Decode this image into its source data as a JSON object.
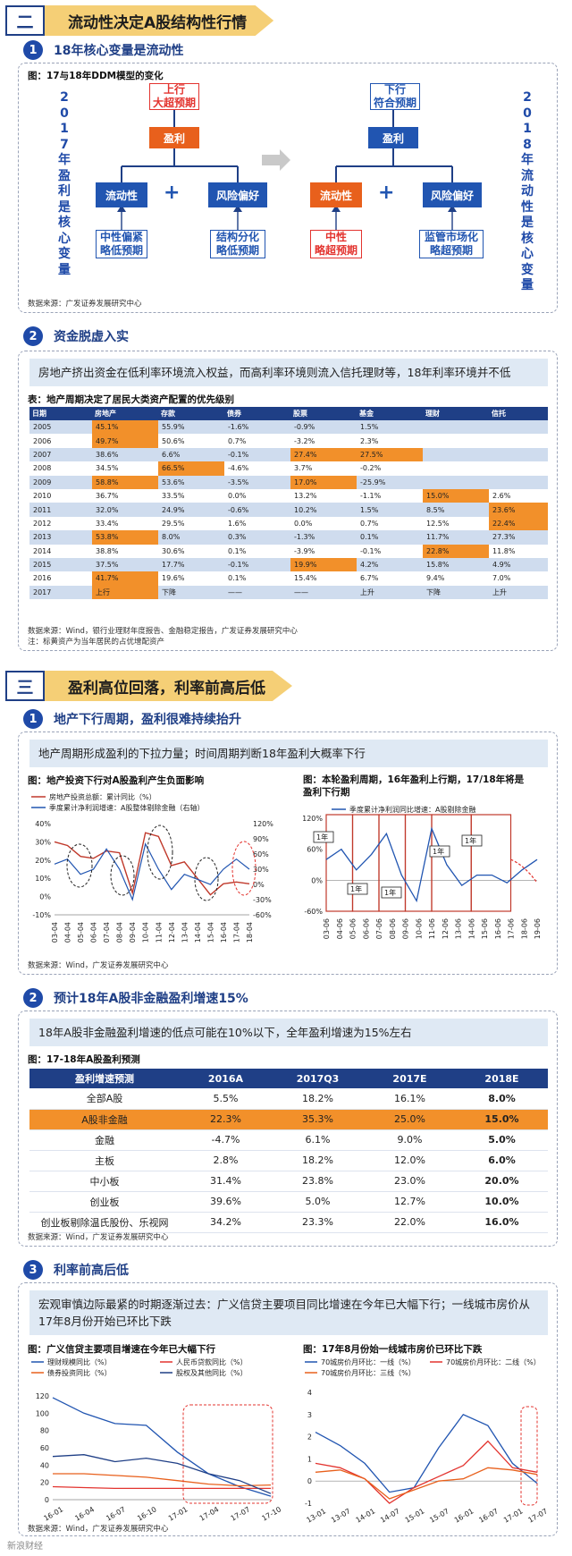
{
  "section2": {
    "num": "二",
    "label": "流动性决定A股结构性行情"
  },
  "sub1": {
    "num": "1",
    "label": "18年核心变量是流动性"
  },
  "ddm": {
    "fig_title": "图：17与18年DDM模型的变化",
    "left_vertical": "2017年盈利是核心变量",
    "right_vertical": "2018年流动性是核心变量",
    "left_top_1": "上行",
    "left_top_2": "大超预期",
    "right_top_1": "下行",
    "right_top_2": "符合预期",
    "profit": "盈利",
    "liquidity": "流动性",
    "risk": "风险偏好",
    "plus": "+",
    "l_liq_1": "中性偏紧",
    "l_liq_2": "略低预期",
    "l_risk_1": "结构分化",
    "l_risk_2": "略低预期",
    "r_liq_1": "中性",
    "r_liq_2": "略超预期",
    "r_risk_1": "监管市场化",
    "r_risk_2": "略超预期",
    "source": "数据来源：广发证券发展研究中心"
  },
  "sub2": {
    "num": "2",
    "label": "资金脱虚入实"
  },
  "alloc": {
    "highlight": "房地产挤出资金在低利率环境流入权益，而高利率环境则流入信托理财等，18年利率环境并不低",
    "fig_title": "表：地产周期决定了居民大类资产配置的优先级别",
    "headers": [
      "日期",
      "房地产",
      "存款",
      "债券",
      "股票",
      "基金",
      "理财",
      "信托"
    ],
    "rows": [
      {
        "cells": [
          "2005",
          "45.1%",
          "55.9%",
          "-1.6%",
          "-0.9%",
          "1.5%",
          "",
          ""
        ],
        "hl": [
          1
        ]
      },
      {
        "cells": [
          "2006",
          "49.7%",
          "50.6%",
          "0.7%",
          "-3.2%",
          "2.3%",
          "",
          ""
        ],
        "hl": [
          1
        ]
      },
      {
        "cells": [
          "2007",
          "38.6%",
          "6.6%",
          "-0.1%",
          "27.4%",
          "27.5%",
          "",
          ""
        ],
        "hl": [
          4,
          5
        ]
      },
      {
        "cells": [
          "2008",
          "34.5%",
          "66.5%",
          "-4.6%",
          "3.7%",
          "-0.2%",
          "",
          ""
        ],
        "hl": [
          2
        ]
      },
      {
        "cells": [
          "2009",
          "58.8%",
          "53.6%",
          "-3.5%",
          "17.0%",
          "-25.9%",
          "",
          ""
        ],
        "hl": [
          1,
          4
        ]
      },
      {
        "cells": [
          "2010",
          "36.7%",
          "33.5%",
          "0.0%",
          "13.2%",
          "-1.1%",
          "15.0%",
          "2.6%"
        ],
        "hl": [
          6
        ]
      },
      {
        "cells": [
          "2011",
          "32.0%",
          "24.9%",
          "-0.6%",
          "10.2%",
          "1.5%",
          "8.5%",
          "23.6%"
        ],
        "hl": [
          7
        ]
      },
      {
        "cells": [
          "2012",
          "33.4%",
          "29.5%",
          "1.6%",
          "0.0%",
          "0.7%",
          "12.5%",
          "22.4%"
        ],
        "hl": [
          7
        ]
      },
      {
        "cells": [
          "2013",
          "53.8%",
          "8.0%",
          "0.3%",
          "-1.3%",
          "0.1%",
          "11.7%",
          "27.3%"
        ],
        "hl": [
          1
        ]
      },
      {
        "cells": [
          "2014",
          "38.8%",
          "30.6%",
          "0.1%",
          "-3.9%",
          "-0.1%",
          "22.8%",
          "11.8%"
        ],
        "hl": [
          6
        ]
      },
      {
        "cells": [
          "2015",
          "37.5%",
          "17.7%",
          "-0.1%",
          "19.9%",
          "4.2%",
          "15.8%",
          "4.9%"
        ],
        "hl": [
          4
        ]
      },
      {
        "cells": [
          "2016",
          "41.7%",
          "19.6%",
          "0.1%",
          "15.4%",
          "6.7%",
          "9.4%",
          "7.0%"
        ],
        "hl": [
          1
        ]
      },
      {
        "cells": [
          "2017",
          "上行",
          "下降",
          "——",
          "——",
          "上升",
          "下降",
          "上升"
        ],
        "hl": [
          1
        ]
      }
    ],
    "source": "数据来源：Wind，银行业理财年度报告、金融稳定报告，广发证券发展研究中心",
    "note": "注：标黄资产为当年居民的占优增配资产"
  },
  "section3": {
    "num": "三",
    "label": "盈利高位回落，利率前高后低"
  },
  "sub3": {
    "num": "1",
    "label": "地产下行周期，盈利很难持续抬升"
  },
  "earn": {
    "highlight": "地产周期形成盈利的下拉力量；时间周期判断18年盈利大概率下行",
    "left_title": "图：地产投资下行对A股盈利产生负面影响",
    "left_legend_1": "房地产投资总额：累计同比（%）",
    "left_legend_2": "季度累计净利润增速：A股整体剔除金融（右轴）",
    "right_title_1": "图：本轮盈利周期，16年盈利上行期，17/18年将是",
    "right_title_2": "盈利下行期",
    "right_legend": "季度累计净利润同比增速：A股剔除金融",
    "year_label": "1年",
    "source": "数据来源：Wind，广发证券发展研究中心"
  },
  "sub4": {
    "num": "2",
    "label": "预计18年A股非金融盈利增速15%"
  },
  "pred": {
    "highlight": "18年A股非金融盈利增速的低点可能在10%以下，全年盈利增速为15%左右",
    "fig_title": "图：17-18年A股盈利预测",
    "headers": [
      "盈利增速预测",
      "2016A",
      "2017Q3",
      "2017E",
      "2018E"
    ],
    "rows": [
      [
        "全部A股",
        "5.5%",
        "18.2%",
        "16.1%",
        "8.0%"
      ],
      [
        "A股非金融",
        "22.3%",
        "35.3%",
        "25.0%",
        "15.0%"
      ],
      [
        "金融",
        "-4.7%",
        "6.1%",
        "9.0%",
        "5.0%"
      ],
      [
        "主板",
        "2.8%",
        "18.2%",
        "12.0%",
        "6.0%"
      ],
      [
        "中小板",
        "31.4%",
        "23.8%",
        "23.0%",
        "20.0%"
      ],
      [
        "创业板",
        "39.6%",
        "5.0%",
        "12.7%",
        "10.0%"
      ],
      [
        "创业板剔除温氏股份、乐视网",
        "34.2%",
        "23.3%",
        "22.0%",
        "16.0%"
      ]
    ],
    "source": "数据来源：Wind，广发证券发展研究中心"
  },
  "sub5": {
    "num": "3",
    "label": "利率前高后低"
  },
  "rate": {
    "highlight": "宏观审慎边际最紧的时期逐渐过去：广义信贷主要项目同比增速在今年已大幅下行；一线城市房价从17年8月份开始已环比下跌",
    "left_title": "图：广义信贷主要项目增速在今年已大幅下行",
    "left_legend": [
      "理财规模同比（%）",
      "人民币贷款同比（%）",
      "债券投资同比（%）",
      "股权及其他同比（%）"
    ],
    "right_title": "图：17年8月份始一线城市房价已环比下跌",
    "right_legend": [
      "70城房价月环比：一线（%）",
      "70城房价月环比：二线（%）",
      "70城房价月环比：三线（%）"
    ],
    "source": "数据来源：Wind，广发证券发展研究中心"
  },
  "watermark": "新浪财经",
  "colors": {
    "navy": "#1f3f86",
    "blue": "#2155b1",
    "orange": "#f2902a",
    "red": "#e3342f",
    "banner": "#f5cf76"
  },
  "chart_data": [
    {
      "type": "line",
      "title": "图：地产投资下行对A股盈利产生负面影响",
      "x": [
        "03-04",
        "04-04",
        "05-04",
        "06-04",
        "07-04",
        "08-04",
        "09-04",
        "10-04",
        "11-04",
        "12-04",
        "13-04",
        "14-04",
        "15-04",
        "16-04",
        "17-04",
        "18-04"
      ],
      "ylim": [
        -10,
        40
      ],
      "y2lim": [
        -60,
        120
      ],
      "series": [
        {
          "name": "房地产投资总额：累计同比（%）",
          "axis": "left",
          "values": [
            30,
            28,
            22,
            21,
            25,
            24,
            2,
            35,
            33,
            17,
            19,
            10,
            1,
            7,
            8,
            7
          ]
        },
        {
          "name": "季度累计净利润增速：A股整体剔除金融（右轴）",
          "axis": "right",
          "values": [
            40,
            50,
            20,
            30,
            70,
            30,
            -30,
            80,
            30,
            -10,
            20,
            10,
            0,
            30,
            50,
            30
          ]
        }
      ]
    },
    {
      "type": "line",
      "title": "图：本轮盈利周期，16年盈利上行期，17/18年将是盈利下行期",
      "x": [
        "03-06",
        "04-06",
        "05-06",
        "06-06",
        "07-06",
        "08-06",
        "09-06",
        "10-06",
        "11-06",
        "12-06",
        "13-06",
        "14-06",
        "15-06",
        "16-06",
        "17-06",
        "18-06",
        "19-06"
      ],
      "ylim": [
        -60,
        120
      ],
      "series": [
        {
          "name": "季度累计净利润同比增速：A股剔除金融",
          "values": [
            40,
            60,
            20,
            50,
            90,
            10,
            -40,
            100,
            30,
            -10,
            10,
            10,
            -5,
            20,
            40,
            20,
            -5
          ]
        }
      ]
    },
    {
      "type": "table",
      "title": "图：17-18年A股盈利预测",
      "columns": [
        "盈利增速预测",
        "2016A",
        "2017Q3",
        "2017E",
        "2018E"
      ],
      "rows": [
        [
          "全部A股",
          "5.5%",
          "18.2%",
          "16.1%",
          "8.0%"
        ],
        [
          "A股非金融",
          "22.3%",
          "35.3%",
          "25.0%",
          "15.0%"
        ],
        [
          "金融",
          "-4.7%",
          "6.1%",
          "9.0%",
          "5.0%"
        ],
        [
          "主板",
          "2.8%",
          "18.2%",
          "12.0%",
          "6.0%"
        ],
        [
          "中小板",
          "31.4%",
          "23.8%",
          "23.0%",
          "20.0%"
        ],
        [
          "创业板",
          "39.6%",
          "5.0%",
          "12.7%",
          "10.0%"
        ],
        [
          "创业板剔除温氏股份、乐视网",
          "34.2%",
          "23.3%",
          "22.0%",
          "16.0%"
        ]
      ]
    },
    {
      "type": "line",
      "title": "图：广义信贷主要项目增速在今年已大幅下行",
      "x": [
        "16-01",
        "16-04",
        "16-07",
        "16-10",
        "17-01",
        "17-04",
        "17-07",
        "17-10"
      ],
      "ylim": [
        0,
        120
      ],
      "series": [
        {
          "name": "理财规模同比（%）",
          "values": [
            118,
            100,
            88,
            86,
            55,
            30,
            15,
            4
          ]
        },
        {
          "name": "人民币贷款同比（%）",
          "values": [
            15,
            14,
            13,
            13,
            13,
            13,
            13,
            13
          ]
        },
        {
          "name": "债券投资同比（%）",
          "values": [
            30,
            30,
            28,
            26,
            22,
            18,
            16,
            17
          ]
        },
        {
          "name": "股权及其他同比（%）",
          "values": [
            50,
            52,
            44,
            48,
            42,
            30,
            22,
            7
          ]
        }
      ]
    },
    {
      "type": "line",
      "title": "图：17年8月份始一线城市房价已环比下跌",
      "x": [
        "13-01",
        "13-07",
        "14-01",
        "14-07",
        "15-01",
        "15-07",
        "16-01",
        "16-07",
        "17-01",
        "17-07"
      ],
      "ylim": [
        -1,
        4
      ],
      "series": [
        {
          "name": "70城房价月环比：一线（%）",
          "values": [
            2.2,
            1.6,
            0.8,
            -0.5,
            -0.3,
            1.5,
            3.0,
            2.5,
            0.8,
            -0.1
          ]
        },
        {
          "name": "70城房价月环比：二线（%）",
          "values": [
            0.8,
            0.6,
            0.1,
            -1.0,
            -0.3,
            0.2,
            0.7,
            1.8,
            0.6,
            0.4
          ]
        },
        {
          "name": "70城房价月环比：三线（%）",
          "values": [
            0.4,
            0.5,
            0.1,
            -0.8,
            -0.4,
            0.0,
            0.1,
            0.6,
            0.5,
            0.3
          ]
        }
      ]
    }
  ]
}
